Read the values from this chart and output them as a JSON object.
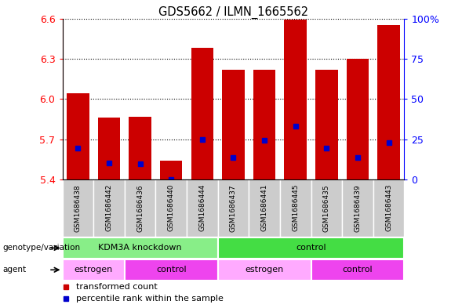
{
  "title": "GDS5662 / ILMN_1665562",
  "samples": [
    "GSM1686438",
    "GSM1686442",
    "GSM1686436",
    "GSM1686440",
    "GSM1686444",
    "GSM1686437",
    "GSM1686441",
    "GSM1686445",
    "GSM1686435",
    "GSM1686439",
    "GSM1686443"
  ],
  "bar_values": [
    6.04,
    5.86,
    5.87,
    5.54,
    6.38,
    6.22,
    6.22,
    6.59,
    6.22,
    6.3,
    6.55
  ],
  "percentile_values": [
    5.635,
    5.525,
    5.515,
    5.4,
    5.7,
    5.565,
    5.695,
    5.795,
    5.635,
    5.565,
    5.675
  ],
  "ymin": 5.4,
  "ymax": 6.6,
  "yticks_left": [
    5.4,
    5.7,
    6.0,
    6.3,
    6.6
  ],
  "yticks_right": [
    0,
    25,
    50,
    75,
    100
  ],
  "bar_color": "#cc0000",
  "percentile_color": "#0000cc",
  "bar_width": 0.72,
  "xtick_bg": "#cccccc",
  "genotype_groups": [
    {
      "label": "KDM3A knockdown",
      "start": 0,
      "end": 5,
      "color": "#88ee88"
    },
    {
      "label": "control",
      "start": 5,
      "end": 11,
      "color": "#44dd44"
    }
  ],
  "agent_groups": [
    {
      "label": "estrogen",
      "start": 0,
      "end": 2,
      "color": "#ffaaff"
    },
    {
      "label": "control",
      "start": 2,
      "end": 5,
      "color": "#ee44ee"
    },
    {
      "label": "estrogen",
      "start": 5,
      "end": 8,
      "color": "#ffaaff"
    },
    {
      "label": "control",
      "start": 8,
      "end": 11,
      "color": "#ee44ee"
    }
  ],
  "genotype_label": "genotype/variation",
  "agent_label": "agent",
  "legend_items": [
    {
      "label": "transformed count",
      "color": "#cc0000"
    },
    {
      "label": "percentile rank within the sample",
      "color": "#0000cc"
    }
  ]
}
